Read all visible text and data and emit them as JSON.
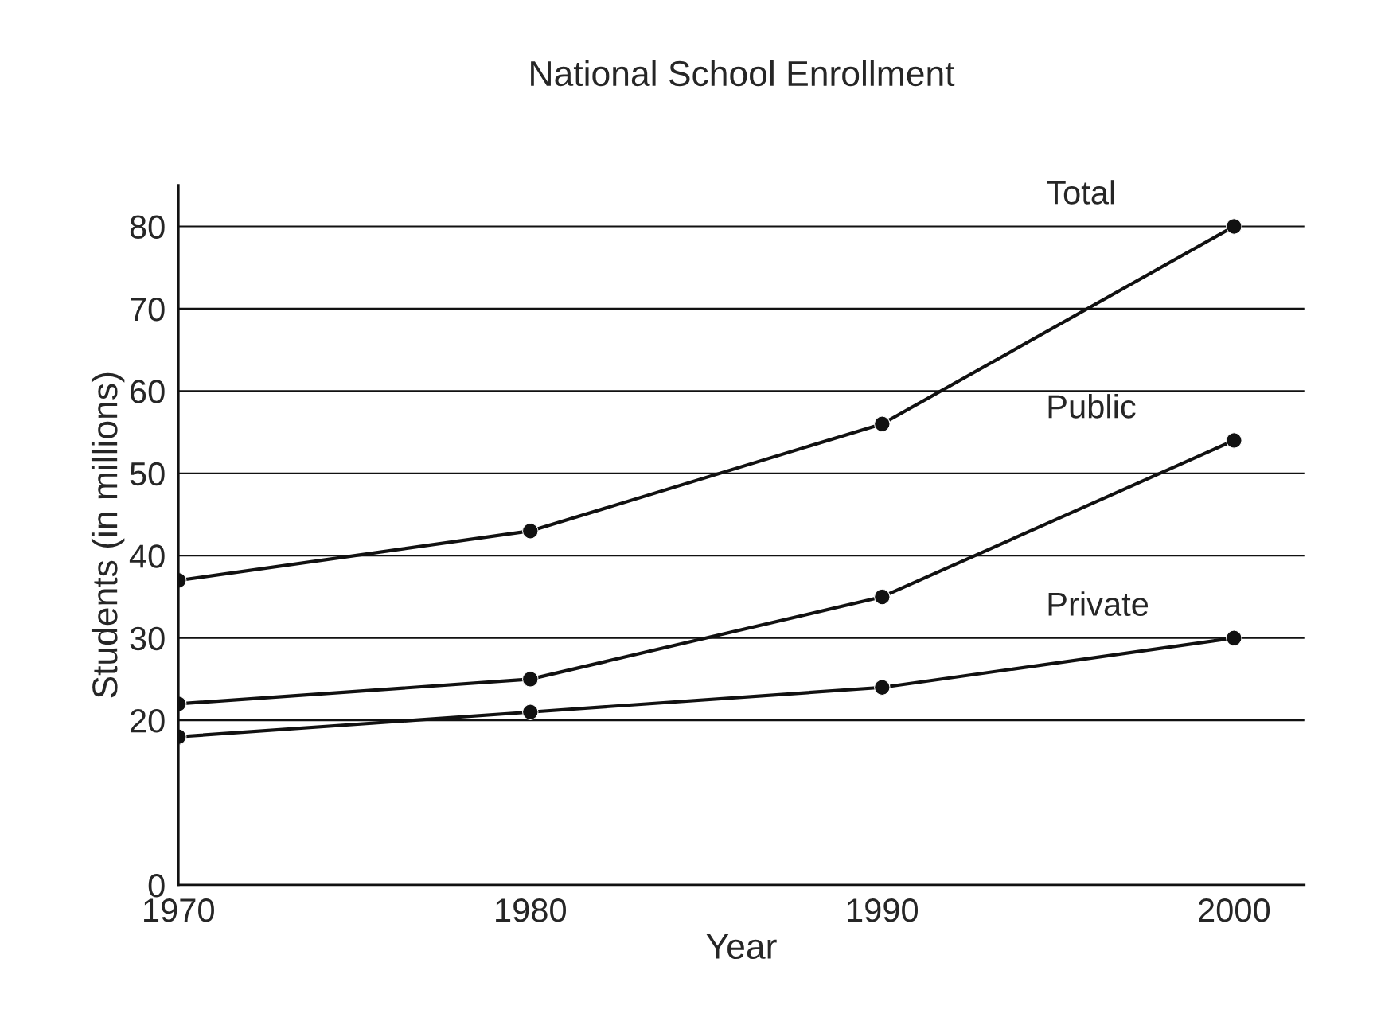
{
  "chart_data": {
    "type": "line",
    "title": "National School Enrollment",
    "xlabel": "Year",
    "ylabel": "Students (in millions)",
    "x": [
      1970,
      1980,
      1990,
      2000
    ],
    "series": [
      {
        "name": "Total",
        "color": "#111111",
        "values": [
          37,
          43,
          56,
          80
        ]
      },
      {
        "name": "Public",
        "color": "#111111",
        "values": [
          22,
          25,
          35,
          54
        ]
      },
      {
        "name": "Private",
        "color": "#111111",
        "values": [
          18,
          21,
          24,
          30
        ]
      }
    ],
    "xlim": [
      1970,
      2002
    ],
    "xticks": [
      1970,
      1980,
      1990,
      2000
    ],
    "ylim": [
      0,
      85
    ],
    "yticks": [
      0,
      20,
      30,
      40,
      50,
      60,
      70,
      80
    ],
    "grid": "y",
    "legend": false,
    "marker": "circle",
    "line_style": "solid"
  }
}
